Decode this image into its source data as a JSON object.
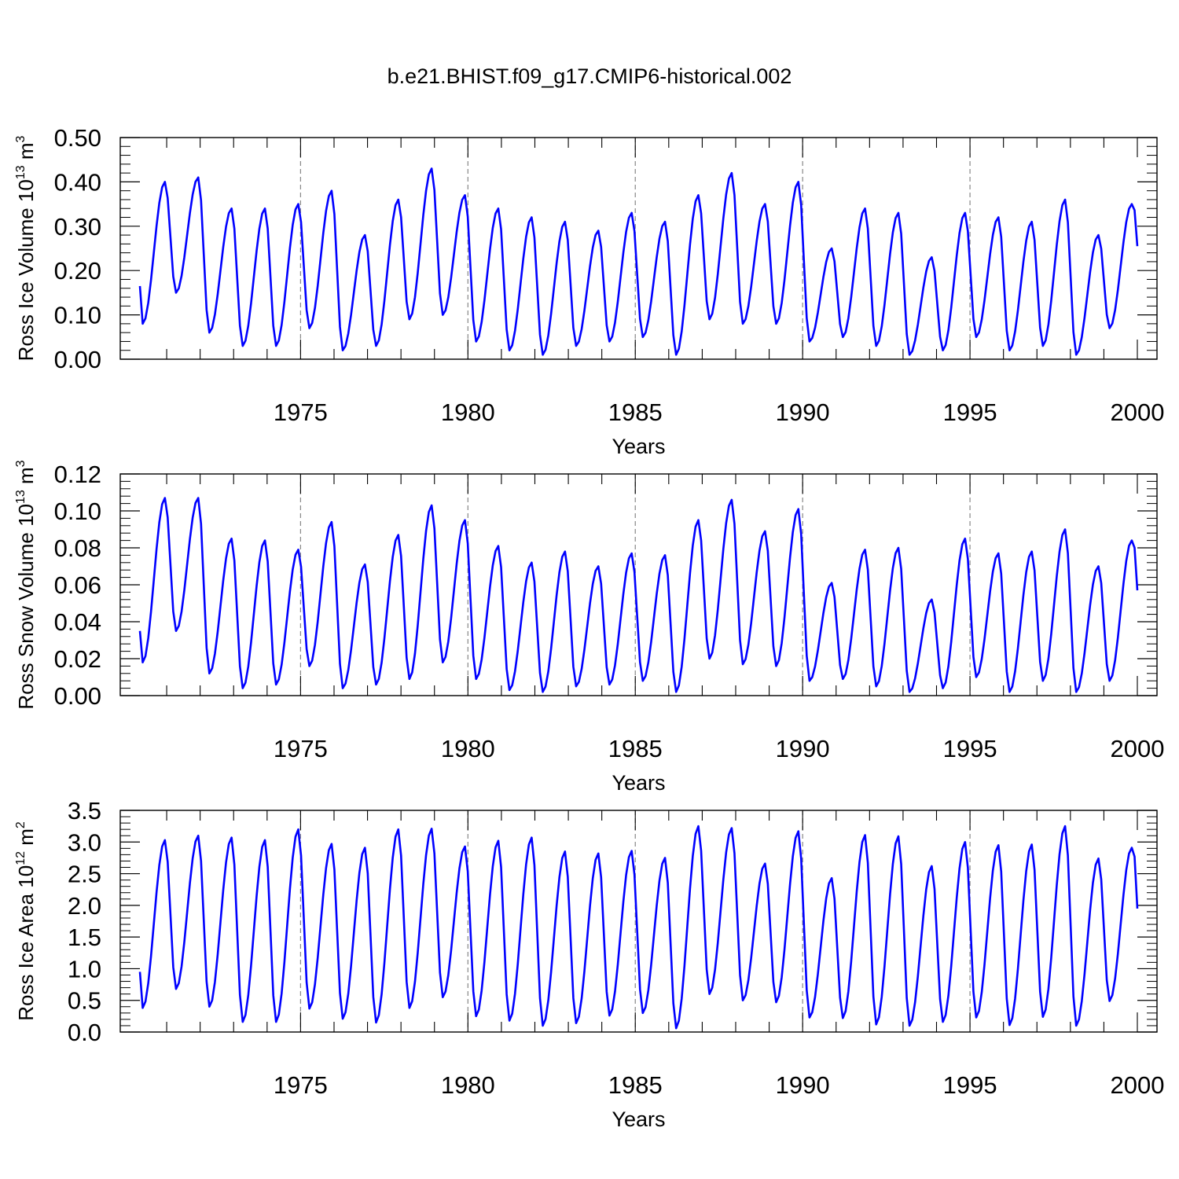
{
  "title": "b.e21.BHIST.f09_g17.CMIP6-historical.002",
  "line_color": "#0000ff",
  "chart_data": [
    {
      "type": "line",
      "ylabel": "Ross Ice Volume 10",
      "ylabel_exp": "13",
      "ylabel_unit": " m",
      "ylabel_unit_exp": "3",
      "xlabel": "Years",
      "ylim": [
        0,
        0.5
      ],
      "yticks": [
        0,
        0.1,
        0.2,
        0.3,
        0.4,
        0.5
      ],
      "ytick_labels": [
        "0.00",
        "0.10",
        "0.20",
        "0.30",
        "0.40",
        "0.50"
      ],
      "xlim": [
        1970,
        2000
      ],
      "xticks": [
        1975,
        1980,
        1985,
        1990,
        1995,
        2000
      ],
      "xtick_labels": [
        "1975",
        "1980",
        "1985",
        "1990",
        "1995",
        "2000"
      ],
      "series": [
        {
          "name": "Ross Ice Volume",
          "peaks": [
            0.4,
            0.41,
            0.34,
            0.34,
            0.35,
            0.38,
            0.28,
            0.36,
            0.43,
            0.37,
            0.34,
            0.32,
            0.31,
            0.29,
            0.33,
            0.31,
            0.37,
            0.42,
            0.35,
            0.4,
            0.25,
            0.34,
            0.33,
            0.23,
            0.33,
            0.32,
            0.31,
            0.36,
            0.28,
            0.35
          ],
          "troughs": [
            0.08,
            0.15,
            0.06,
            0.03,
            0.03,
            0.07,
            0.02,
            0.03,
            0.09,
            0.1,
            0.04,
            0.02,
            0.01,
            0.03,
            0.04,
            0.05,
            0.01,
            0.09,
            0.08,
            0.08,
            0.04,
            0.05,
            0.03,
            0.01,
            0.02,
            0.05,
            0.02,
            0.03,
            0.01,
            0.07
          ],
          "start": 0.165,
          "end": 0.255
        }
      ]
    },
    {
      "type": "line",
      "ylabel": "Ross Snow Volume 10",
      "ylabel_exp": "13",
      "ylabel_unit": " m",
      "ylabel_unit_exp": "3",
      "xlabel": "Years",
      "ylim": [
        0,
        0.12
      ],
      "yticks": [
        0,
        0.02,
        0.04,
        0.06,
        0.08,
        0.1,
        0.12
      ],
      "ytick_labels": [
        "0.00",
        "0.02",
        "0.04",
        "0.06",
        "0.08",
        "0.10",
        "0.12"
      ],
      "xlim": [
        1970,
        2000
      ],
      "xticks": [
        1975,
        1980,
        1985,
        1990,
        1995,
        2000
      ],
      "xtick_labels": [
        "1975",
        "1980",
        "1985",
        "1990",
        "1995",
        "2000"
      ],
      "series": [
        {
          "name": "Ross Snow Volume",
          "peaks": [
            0.107,
            0.107,
            0.085,
            0.084,
            0.079,
            0.094,
            0.071,
            0.087,
            0.103,
            0.095,
            0.081,
            0.072,
            0.078,
            0.07,
            0.077,
            0.076,
            0.095,
            0.106,
            0.089,
            0.101,
            0.061,
            0.079,
            0.08,
            0.052,
            0.085,
            0.077,
            0.078,
            0.09,
            0.07,
            0.084
          ],
          "troughs": [
            0.018,
            0.035,
            0.012,
            0.004,
            0.006,
            0.016,
            0.004,
            0.006,
            0.009,
            0.018,
            0.009,
            0.003,
            0.002,
            0.005,
            0.006,
            0.008,
            0.002,
            0.02,
            0.017,
            0.016,
            0.008,
            0.009,
            0.005,
            0.002,
            0.004,
            0.01,
            0.002,
            0.008,
            0.002,
            0.008
          ],
          "start": 0.035,
          "end": 0.057
        }
      ]
    },
    {
      "type": "line",
      "ylabel": "Ross Ice Area 10",
      "ylabel_exp": "12",
      "ylabel_unit": " m",
      "ylabel_unit_exp": "2",
      "xlabel": "Years",
      "ylim": [
        0,
        3.5
      ],
      "yticks": [
        0,
        0.5,
        1.0,
        1.5,
        2.0,
        2.5,
        3.0,
        3.5
      ],
      "ytick_labels": [
        "0.0",
        "0.5",
        "1.0",
        "1.5",
        "2.0",
        "2.5",
        "3.0",
        "3.5"
      ],
      "xlim": [
        1970,
        2000
      ],
      "xticks": [
        1975,
        1980,
        1985,
        1990,
        1995,
        2000
      ],
      "xtick_labels": [
        "1975",
        "1980",
        "1985",
        "1990",
        "1995",
        "2000"
      ],
      "series": [
        {
          "name": "Ross Ice Area",
          "peaks": [
            3.03,
            3.1,
            3.07,
            3.03,
            3.2,
            2.97,
            2.91,
            3.2,
            3.21,
            2.93,
            3.02,
            3.07,
            2.85,
            2.82,
            2.86,
            2.75,
            3.25,
            3.22,
            2.66,
            3.17,
            2.43,
            3.11,
            3.09,
            2.62,
            3.0,
            2.95,
            2.96,
            3.25,
            2.74,
            2.91
          ],
          "troughs": [
            0.38,
            0.68,
            0.4,
            0.16,
            0.16,
            0.37,
            0.21,
            0.15,
            0.38,
            0.55,
            0.25,
            0.18,
            0.1,
            0.14,
            0.26,
            0.3,
            0.06,
            0.6,
            0.5,
            0.47,
            0.23,
            0.22,
            0.12,
            0.1,
            0.16,
            0.23,
            0.11,
            0.24,
            0.1,
            0.49
          ],
          "start": 0.95,
          "end": 1.95
        }
      ]
    }
  ]
}
